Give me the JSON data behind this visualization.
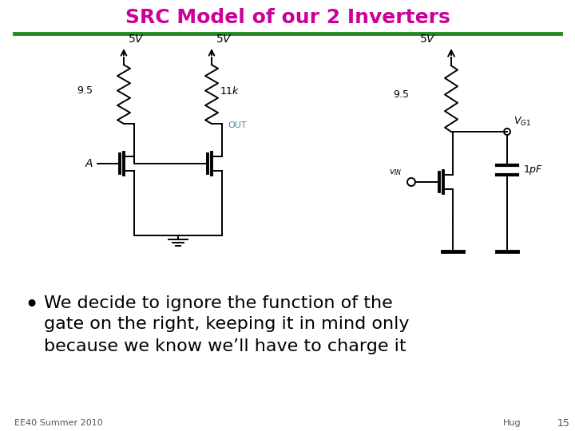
{
  "title": "SRC Model of our 2 Inverters",
  "title_color": "#CC0099",
  "title_fontsize": 18,
  "separator_color": "#228B22",
  "bg_color": "#FFFFFF",
  "body_text_line1": "We decide to ignore the function of the",
  "body_text_line2": "gate on the right, keeping it in mind only",
  "body_text_line3": "because we know we’ll have to charge it",
  "body_fontsize": 16,
  "footer_left": "EE40 Summer 2010",
  "footer_right_name": "Hug",
  "footer_page": "15",
  "footer_fontsize": 8,
  "black": "#000000",
  "lw": 1.4
}
